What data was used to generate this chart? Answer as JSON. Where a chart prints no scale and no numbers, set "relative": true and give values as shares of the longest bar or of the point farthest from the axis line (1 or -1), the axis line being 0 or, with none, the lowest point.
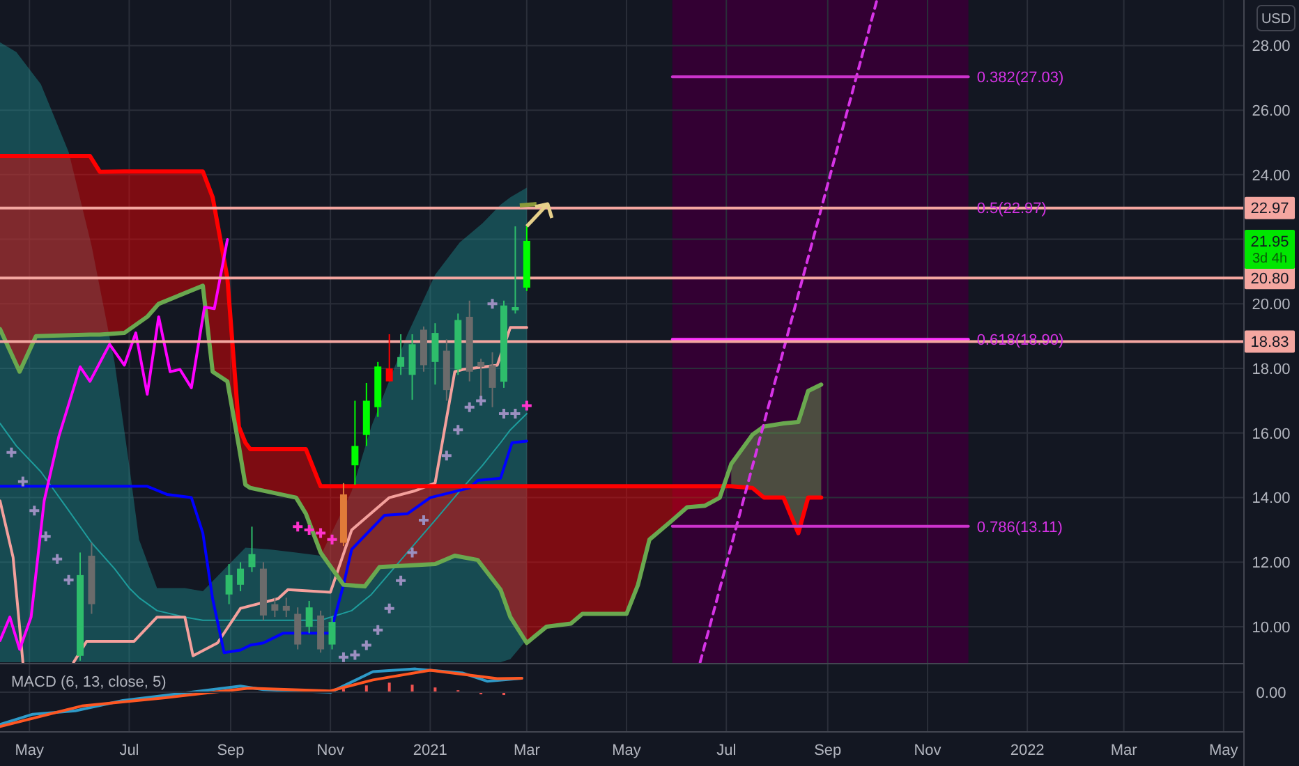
{
  "chart_data": [
    {
      "type": "candlestick",
      "ylabel": "USD",
      "xlim": [
        "2020-04-13",
        "2022-05-13"
      ],
      "ylim": [
        8.88,
        29.41
      ],
      "xticks": [
        {
          "value": "2020-05-01",
          "label": null
        },
        {
          "value": "2020-07-01",
          "label": null
        },
        {
          "value": "2020-09-01",
          "label": null
        },
        {
          "value": "2020-11-01",
          "label": null
        },
        {
          "value": "2021-01-01",
          "label": null
        },
        {
          "value": "2021-03-01",
          "label": null
        },
        {
          "value": "2021-05-01",
          "label": null
        },
        {
          "value": "2021-07-01",
          "label": null
        },
        {
          "value": "2021-09-01",
          "label": null
        },
        {
          "value": "2021-11-01",
          "label": null
        },
        {
          "value": "2022-01-01",
          "label": null
        },
        {
          "value": "2022-03-01",
          "label": null
        },
        {
          "value": "2022-05-01",
          "label": null
        }
      ],
      "yticks": [
        {
          "value": 10,
          "label": "10.00"
        },
        {
          "value": 12,
          "label": "12.00"
        },
        {
          "value": 14,
          "label": "14.00"
        },
        {
          "value": 16,
          "label": "16.00"
        },
        {
          "value": 18,
          "label": "18.00"
        },
        {
          "value": 20,
          "label": "20.00"
        },
        {
          "value": 22,
          "label": null
        },
        {
          "value": 24,
          "label": "24.00"
        },
        {
          "value": 26,
          "label": "26.00"
        },
        {
          "value": 28,
          "label": "28.00"
        }
      ],
      "grid": true,
      "tick_labels": "y",
      "x": [
        "2020-06-01",
        "2020-06-08",
        "2020-08-31",
        "2020-09-07",
        "2020-09-14",
        "2020-09-21",
        "2020-09-28",
        "2020-10-05",
        "2020-10-12",
        "2020-10-19",
        "2020-10-26",
        "2020-11-02",
        "2020-11-09",
        "2020-11-16",
        "2020-11-23",
        "2020-11-30",
        "2020-12-07",
        "2020-12-14",
        "2020-12-21",
        "2020-12-28",
        "2021-01-04",
        "2021-01-11",
        "2021-01-18",
        "2021-01-25",
        "2021-02-01",
        "2021-02-08",
        "2021-02-15",
        "2021-02-22",
        "2021-03-01"
      ],
      "ohlc": [
        [
          9.1,
          12.3,
          8.95,
          11.6
        ],
        [
          12.2,
          12.6,
          10.4,
          10.7
        ],
        [
          11.0,
          11.94,
          10.7,
          11.6
        ],
        [
          11.3,
          12.0,
          11.1,
          11.8
        ],
        [
          11.85,
          13.1,
          11.7,
          12.25
        ],
        [
          11.8,
          12.0,
          10.2,
          10.35
        ],
        [
          10.7,
          10.9,
          10.3,
          10.5
        ],
        [
          10.65,
          10.9,
          10.3,
          10.5
        ],
        [
          10.4,
          10.6,
          9.3,
          9.45
        ],
        [
          10.0,
          10.8,
          9.8,
          10.6
        ],
        [
          10.35,
          10.5,
          9.2,
          9.3
        ],
        [
          9.45,
          10.3,
          9.3,
          10.15
        ],
        [
          12.6,
          14.45,
          12.5,
          14.1
        ],
        [
          15.0,
          17.0,
          14.4,
          15.6
        ],
        [
          15.94,
          17.55,
          15.6,
          17.0
        ],
        [
          16.8,
          18.2,
          16.5,
          18.06
        ],
        [
          18.0,
          19.06,
          17.6,
          17.6
        ],
        [
          18.05,
          19.06,
          17.8,
          18.35
        ],
        [
          17.8,
          19.06,
          17.03,
          18.75
        ],
        [
          19.2,
          19.3,
          17.9,
          18.1
        ],
        [
          18.2,
          19.4,
          17.5,
          19.1
        ],
        [
          18.55,
          18.9,
          17.0,
          17.33
        ],
        [
          17.97,
          19.7,
          17.8,
          19.5
        ],
        [
          19.6,
          20.1,
          17.6,
          17.9
        ],
        [
          18.2,
          18.3,
          16.9,
          18.05
        ],
        [
          18.1,
          18.5,
          16.8,
          17.4
        ],
        [
          17.59,
          20.1,
          17.4,
          19.95
        ],
        [
          19.8,
          22.4,
          19.7,
          19.9
        ],
        [
          20.5,
          22.4,
          20.4,
          21.95
        ]
      ],
      "colors": [
        "#2ebd6b",
        "#6b6b6b",
        "#2ebd6b",
        "#2ebd6b",
        "#2ebd6b",
        "#6b6b6b",
        "#6b6b6b",
        "#6b6b6b",
        "#6b6b6b",
        "#2ebd6b",
        "#6b6b6b",
        "#2ebd6b",
        "#e07b39",
        "#00ff00",
        "#00ff00",
        "#00ff00",
        "#ff0000",
        "#2ebd6b",
        "#2ebd6b",
        "#6b6b6b",
        "#2ebd6b",
        "#6b6b6b",
        "#2ebd6b",
        "#6b6b6b",
        "#6b6b6b",
        "#6b6b6b",
        "#2ebd6b",
        "#2ebd6b",
        "#00ff00"
      ],
      "series": [
        {
          "type": "line",
          "color": "#1e9c9c",
          "x": [
            "2020-04-13",
            "2020-04-23",
            "2020-05-08",
            "2020-05-25",
            "2020-06-08",
            "2020-06-22",
            "2020-07-01",
            "2020-07-07",
            "2020-07-18",
            "2020-08-04",
            "2020-08-15",
            "2020-09-10",
            "2020-09-24",
            "2020-10-11",
            "2020-10-26",
            "2020-11-14",
            "2020-11-26",
            "2020-12-18",
            "2021-01-04",
            "2021-01-19",
            "2021-02-02",
            "2021-02-13",
            "2021-02-19",
            "2021-03-01"
          ],
          "values": [
            16.3,
            15.6,
            14.8,
            13.6,
            12.6,
            11.8,
            11.2,
            10.9,
            10.5,
            10.3,
            10.2,
            10.2,
            10.2,
            10.2,
            10.2,
            10.5,
            11.0,
            12.3,
            13.3,
            14.2,
            15.0,
            15.7,
            16.1,
            16.6
          ],
          "upper": [
            28.1,
            27.8,
            26.8,
            24.7,
            21.8,
            18.2,
            15.0,
            12.7,
            11.2,
            11.2,
            11.1,
            12.45,
            12.4,
            12.3,
            12.2,
            14.2,
            16.2,
            19.05,
            20.9,
            21.9,
            22.5,
            23.07,
            23.3,
            23.6
          ],
          "lower": [
            8.9,
            8.9,
            8.9,
            8.9,
            8.9,
            8.9,
            8.9,
            8.9,
            8.9,
            8.9,
            8.9,
            8.9,
            8.9,
            8.9,
            8.9,
            8.9,
            8.9,
            8.9,
            8.9,
            8.9,
            8.9,
            8.9,
            9.0,
            9.6
          ]
        },
        {
          "type": "line",
          "color": "#f4a09c",
          "x": [
            "2020-04-13",
            "2020-04-21",
            "2020-04-27",
            "2020-05-12",
            "2020-05-28",
            "2020-06-05",
            "2020-07-04",
            "2020-07-18",
            "2020-08-04",
            "2020-08-09",
            "2020-08-24",
            "2020-09-07",
            "2020-09-30",
            "2020-10-06",
            "2020-11-01",
            "2020-11-14",
            "2020-12-07",
            "2020-12-22",
            "2021-01-04",
            "2021-01-16",
            "2021-01-21",
            "2021-02-11",
            "2021-02-19",
            "2021-03-01"
          ],
          "values": [
            13.9,
            12.15,
            8.9,
            null,
            8.9,
            9.55,
            9.55,
            10.3,
            10.3,
            9.1,
            9.5,
            10.57,
            10.87,
            11.15,
            11.07,
            13.0,
            14.0,
            14.2,
            14.45,
            17.9,
            17.97,
            18.1,
            19.27,
            19.27
          ]
        },
        {
          "type": "line",
          "color": "#0000ff",
          "x": [
            "2020-04-13",
            "2020-07-12",
            "2020-07-24",
            "2020-08-08",
            "2020-08-15",
            "2020-08-21",
            "2020-08-28",
            "2020-09-07",
            "2020-09-13",
            "2020-09-21",
            "2020-10-03",
            "2020-11-01",
            "2020-11-09",
            "2020-11-14",
            "2020-12-04",
            "2020-12-18",
            "2021-01-01",
            "2021-01-25",
            "2021-01-30",
            "2021-02-13",
            "2021-02-20",
            "2021-03-01"
          ],
          "values": [
            14.35,
            14.35,
            14.1,
            14.0,
            12.9,
            10.86,
            9.2,
            9.28,
            9.43,
            9.5,
            9.8,
            9.8,
            11.3,
            12.4,
            13.45,
            13.5,
            14.0,
            14.3,
            14.53,
            14.6,
            15.7,
            15.75
          ]
        },
        {
          "type": "line",
          "color": "#ff0000",
          "x": [
            "2020-04-13",
            "2020-04-25",
            "2020-05-05",
            "2020-06-07",
            "2020-06-13",
            "2020-06-28",
            "2020-07-12",
            "2020-07-19",
            "2020-08-15",
            "2020-08-21",
            "2020-08-30",
            "2020-09-06",
            "2020-09-10",
            "2020-09-13",
            "2020-10-11",
            "2020-10-17",
            "2020-10-26",
            "2020-11-09",
            "2020-11-22",
            "2020-12-01",
            "2021-01-04",
            "2021-01-16",
            "2021-01-30",
            "2021-02-13",
            "2021-02-19",
            "2021-03-01",
            "2021-03-13",
            "2021-03-28",
            "2021-04-04",
            "2021-05-01",
            "2021-05-08",
            "2021-05-15",
            "2021-05-29",
            "2021-06-07",
            "2021-06-18",
            "2021-06-27",
            "2021-07-04",
            "2021-07-17",
            "2021-07-24",
            "2021-08-05",
            "2021-08-14",
            "2021-08-20",
            "2021-08-28"
          ],
          "values": [
            24.58,
            24.58,
            24.58,
            24.58,
            24.09,
            24.1,
            24.1,
            24.1,
            24.1,
            23.3,
            20.8,
            16.2,
            15.7,
            15.5,
            15.5,
            15.5,
            14.35,
            14.35,
            14.35,
            14.35,
            14.35,
            14.35,
            14.35,
            14.35,
            14.35,
            14.35,
            14.35,
            14.35,
            14.35,
            14.35,
            14.35,
            14.35,
            14.35,
            14.35,
            14.35,
            14.35,
            14.35,
            14.3,
            14.0,
            14.0,
            12.9,
            14.0,
            14.0
          ],
          "upper": [
            24.58,
            24.58,
            24.58,
            24.58,
            24.09,
            24.1,
            24.1,
            24.1,
            24.1,
            23.3,
            20.8,
            16.2,
            15.7,
            15.5,
            15.5,
            15.5,
            14.35,
            14.35,
            14.35,
            14.35,
            14.35,
            14.35,
            14.35,
            14.35,
            14.35,
            14.35,
            14.35,
            14.35,
            14.35,
            14.35,
            14.35,
            14.35,
            14.35,
            14.35,
            14.35,
            14.35,
            null,
            null,
            null,
            null,
            null,
            null,
            null
          ],
          "lower": [
            19.22,
            17.9,
            19.0,
            19.05,
            19.05,
            19.1,
            19.6,
            20.0,
            20.56,
            17.9,
            17.6,
            15.6,
            14.4,
            14.3,
            14.0,
            13.5,
            12.3,
            11.3,
            11.25,
            11.85,
            11.94,
            12.2,
            12.07,
            11.15,
            10.3,
            9.5,
            10.0,
            10.1,
            10.4,
            10.4,
            11.3,
            12.7,
            13.3,
            13.7,
            13.75,
            14.0,
            null,
            null,
            null,
            null,
            null,
            null,
            null
          ]
        },
        {
          "type": "line",
          "color": "#6aa84f",
          "x": [
            "2020-04-13",
            "2020-04-25",
            "2020-05-05",
            "2020-06-07",
            "2020-06-13",
            "2020-06-28",
            "2020-07-12",
            "2020-07-19",
            "2020-08-15",
            "2020-08-21",
            "2020-08-30",
            "2020-09-06",
            "2020-09-10",
            "2020-09-13",
            "2020-10-11",
            "2020-10-17",
            "2020-10-26",
            "2020-11-09",
            "2020-11-22",
            "2020-12-01",
            "2021-01-04",
            "2021-01-16",
            "2021-01-30",
            "2021-02-13",
            "2021-02-19",
            "2021-03-01",
            "2021-03-13",
            "2021-03-28",
            "2021-04-04",
            "2021-05-01",
            "2021-05-08",
            "2021-05-15",
            "2021-05-29",
            "2021-06-07",
            "2021-06-18",
            "2021-06-27",
            "2021-07-04",
            "2021-07-17",
            "2021-07-24",
            "2021-08-05",
            "2021-08-14",
            "2021-08-20",
            "2021-08-28"
          ],
          "values": [
            19.22,
            17.9,
            19.0,
            19.05,
            19.05,
            19.1,
            19.6,
            20.0,
            20.56,
            17.9,
            17.6,
            15.6,
            14.4,
            14.3,
            14.0,
            13.5,
            12.3,
            11.3,
            11.25,
            11.85,
            11.94,
            12.2,
            12.07,
            11.15,
            10.3,
            9.5,
            10.0,
            10.1,
            10.4,
            10.4,
            11.3,
            12.7,
            13.3,
            13.7,
            13.75,
            14.0,
            15.04,
            15.95,
            16.2,
            16.3,
            16.34,
            17.3,
            17.5
          ],
          "upper": [
            null,
            null,
            null,
            null,
            null,
            null,
            null,
            null,
            null,
            null,
            null,
            null,
            null,
            null,
            null,
            null,
            null,
            null,
            null,
            null,
            null,
            null,
            null,
            null,
            null,
            null,
            null,
            null,
            null,
            null,
            null,
            null,
            null,
            null,
            null,
            null,
            15.04,
            15.95,
            16.2,
            16.3,
            16.34,
            17.3,
            17.5
          ],
          "lower": [
            null,
            null,
            null,
            null,
            null,
            null,
            null,
            null,
            null,
            null,
            null,
            null,
            null,
            null,
            null,
            null,
            null,
            null,
            null,
            null,
            null,
            null,
            null,
            null,
            null,
            null,
            null,
            null,
            null,
            null,
            null,
            null,
            null,
            null,
            null,
            null,
            14.35,
            14.3,
            14.0,
            14.0,
            12.9,
            14.0,
            14.0
          ]
        },
        {
          "type": "line",
          "color": "#ff00ff",
          "x": [
            "2020-04-13",
            "2020-04-19",
            "2020-04-25",
            "2020-05-02",
            "2020-05-10",
            "2020-05-19",
            "2020-06-01",
            "2020-06-07",
            "2020-06-19",
            "2020-06-28",
            "2020-07-05",
            "2020-07-12",
            "2020-07-19",
            "2020-07-26",
            "2020-08-01",
            "2020-08-08",
            "2020-08-16",
            "2020-08-22",
            "2020-08-30"
          ],
          "values": [
            9.57,
            10.3,
            9.3,
            10.3,
            13.9,
            15.9,
            18.05,
            17.6,
            18.75,
            18.1,
            19.1,
            17.2,
            19.6,
            17.9,
            17.97,
            17.4,
            19.9,
            19.85,
            21.99
          ]
        },
        {
          "type": "scatter",
          "marker": "cross",
          "color": "#9b8fc0",
          "x": [
            "2020-04-20",
            "2020-04-27",
            "2020-05-04",
            "2020-05-11",
            "2020-05-18",
            "2020-05-25",
            "2020-11-09",
            "2020-11-16",
            "2020-11-23",
            "2020-11-30",
            "2020-12-07",
            "2020-12-14",
            "2020-12-21",
            "2020-12-28",
            "2021-01-11",
            "2021-01-18",
            "2021-01-25",
            "2021-02-01",
            "2021-02-08",
            "2021-02-15",
            "2021-02-22"
          ],
          "values": [
            15.4,
            14.5,
            13.6,
            12.8,
            12.1,
            11.45,
            9.06,
            9.13,
            9.43,
            9.9,
            10.57,
            11.43,
            12.3,
            13.3,
            15.3,
            16.1,
            16.8,
            17.0,
            20.0,
            16.6,
            16.6
          ]
        },
        {
          "type": "scatter",
          "marker": "cross",
          "color": "#ff33cc",
          "x": [
            "2020-10-12",
            "2020-10-19",
            "2020-10-26",
            "2020-11-02",
            "2021-03-01"
          ],
          "values": [
            13.1,
            13.0,
            12.9,
            12.7,
            16.85
          ]
        },
        {
          "type": "line",
          "line_style": "dashed",
          "color": "#d633e6",
          "x": [
            "2021-06-15",
            "2021-10-01"
          ],
          "values": [
            8.9,
            29.4
          ]
        },
        {
          "type": "line",
          "color": "#cc33cc",
          "x": [
            "2021-05-29",
            "2021-11-26"
          ],
          "values": [
            27.03,
            27.03
          ]
        },
        {
          "type": "line",
          "color": "#ff33ff",
          "x": [
            "2021-05-29",
            "2021-11-26"
          ],
          "values": [
            18.9,
            18.9
          ]
        },
        {
          "type": "line",
          "color": "#cc33cc",
          "x": [
            "2021-05-29",
            "2021-11-26"
          ],
          "values": [
            13.11,
            13.11
          ]
        }
      ],
      "ref_lines": [
        {
          "axis": "y",
          "value": 22.97,
          "label": "22.97",
          "color": "#f4a6a0"
        },
        {
          "axis": "y",
          "value": 20.8,
          "label": "20.80",
          "color": "#f4a6a0"
        },
        {
          "axis": "y",
          "value": 18.83,
          "label": "18.83",
          "color": "#f4a6a0"
        }
      ],
      "bands": [
        {
          "axis": "x",
          "from": "2021-05-29",
          "to": "2021-11-26",
          "color": "#330033"
        }
      ],
      "annotations": [
        {
          "text": "0.382(27.03)",
          "x": "2021-11-26",
          "y": 27.03
        },
        {
          "text": "0.5(22.97)",
          "x": "2021-11-26",
          "y": 22.97
        },
        {
          "text": "0.618(18.90)",
          "x": "2021-11-26",
          "y": 18.9
        },
        {
          "text": "0.786(13.11)",
          "x": "2021-11-26",
          "y": 13.11
        },
        "21.95",
        "3d 4h"
      ]
    },
    {
      "type": "line",
      "title": "MACD (6, 13, close, 5)",
      "relative": true,
      "xlim": [
        "2020-04-13",
        "2022-05-13"
      ],
      "xticks": [
        {
          "value": "2020-05-01",
          "label": "May"
        },
        {
          "value": "2020-07-01",
          "label": "Jul"
        },
        {
          "value": "2020-09-01",
          "label": "Sep"
        },
        {
          "value": "2020-11-01",
          "label": "Nov"
        },
        {
          "value": "2021-01-01",
          "label": "2021"
        },
        {
          "value": "2021-03-01",
          "label": "Mar"
        },
        {
          "value": "2021-05-01",
          "label": "May"
        },
        {
          "value": "2021-07-01",
          "label": "Jul"
        },
        {
          "value": "2021-09-01",
          "label": "Sep"
        },
        {
          "value": "2021-11-01",
          "label": "Nov"
        },
        {
          "value": "2022-01-01",
          "label": "2022"
        },
        {
          "value": "2022-03-01",
          "label": "Mar"
        },
        {
          "value": "2022-05-01",
          "label": "May"
        }
      ],
      "grid": "x",
      "tick_labels": "x",
      "ref_lines": [
        {
          "axis": "y",
          "value": 0,
          "label": "0.00",
          "color": "#2a2e39"
        }
      ],
      "series": [
        {
          "type": "bar",
          "color": "#ef5350",
          "x": [
            "2020-10-05",
            "2020-11-09",
            "2020-11-23",
            "2020-12-07",
            "2020-12-21",
            "2021-01-04",
            "2021-01-18",
            "2021-02-01",
            "2021-02-15"
          ],
          "values": [
            0.05,
            0.1,
            0.2,
            0.28,
            0.22,
            0.14,
            0.06,
            -0.06,
            -0.08
          ]
        },
        {
          "type": "line",
          "color": "#2e9ac8",
          "x": [
            "2020-04-13",
            "2020-05-03",
            "2020-05-29",
            "2020-06-27",
            "2020-09-07",
            "2020-09-21",
            "2020-11-01",
            "2020-11-27",
            "2020-12-23",
            "2021-01-21",
            "2021-02-05",
            "2021-02-26"
          ],
          "values": [
            -0.94,
            -0.64,
            -0.54,
            -0.24,
            0.18,
            0.08,
            0,
            0.6,
            0.68,
            0.56,
            0.32,
            0.41
          ]
        },
        {
          "type": "line",
          "color": "#ff5722",
          "x": [
            "2020-04-13",
            "2020-06-02",
            "2020-07-23",
            "2020-09-12",
            "2020-11-01",
            "2020-11-27",
            "2021-01-01",
            "2021-02-11",
            "2021-02-26"
          ],
          "values": [
            -1.0,
            -0.4,
            -0.16,
            0.12,
            0.04,
            0.36,
            0.64,
            0.4,
            0.41
          ]
        }
      ]
    }
  ]
}
